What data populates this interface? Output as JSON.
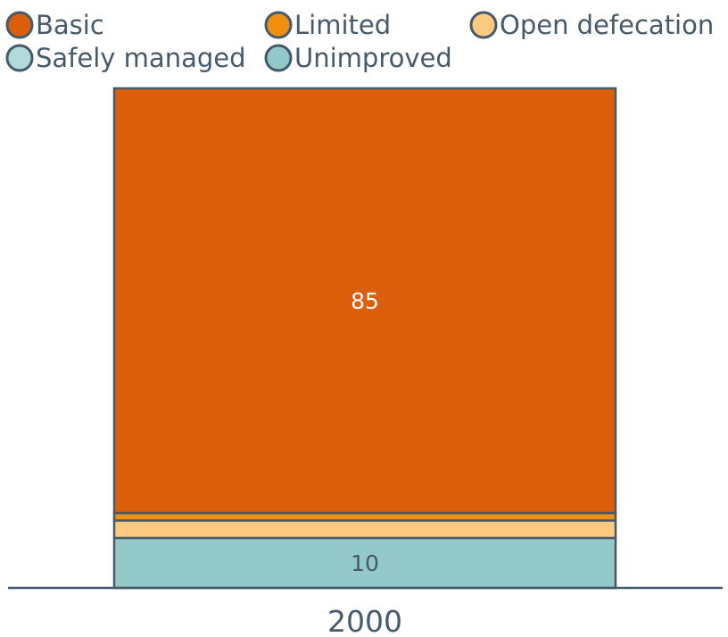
{
  "chart_data": {
    "type": "bar",
    "stacked": true,
    "categories": [
      "2000"
    ],
    "series": [
      {
        "name": "Safely managed",
        "values": [
          0
        ],
        "color": "#b2dadb"
      },
      {
        "name": "Unimproved",
        "values": [
          10
        ],
        "color": "#93c9c8"
      },
      {
        "name": "Open defecation",
        "values": [
          3.5
        ],
        "color": "#fbc97f"
      },
      {
        "name": "Limited",
        "values": [
          1.5
        ],
        "color": "#f18f11"
      },
      {
        "name": "Basic",
        "values": [
          85
        ],
        "color": "#dd5e0a"
      }
    ],
    "stack_order": [
      "Safely managed",
      "Unimproved",
      "Open defecation",
      "Limited",
      "Basic"
    ],
    "data_labels": [
      {
        "series": "Basic",
        "text": "85",
        "color": "#ffffff"
      },
      {
        "series": "Unimproved",
        "text": "10",
        "color": "#455a6b"
      }
    ],
    "ylim": [
      0,
      100
    ],
    "title": "",
    "xlabel": "",
    "ylabel": "",
    "grid": false,
    "legend_placement": "top",
    "stroke_color": "#455a6b"
  },
  "legend": {
    "items": [
      {
        "label": "Basic",
        "color": "#dd5e0a"
      },
      {
        "label": "Limited",
        "color": "#f18f11"
      },
      {
        "label": "Open defecation",
        "color": "#fbc97f"
      },
      {
        "label": "Safely managed",
        "color": "#b2dadb"
      },
      {
        "label": "Unimproved",
        "color": "#93c9c8"
      }
    ]
  }
}
